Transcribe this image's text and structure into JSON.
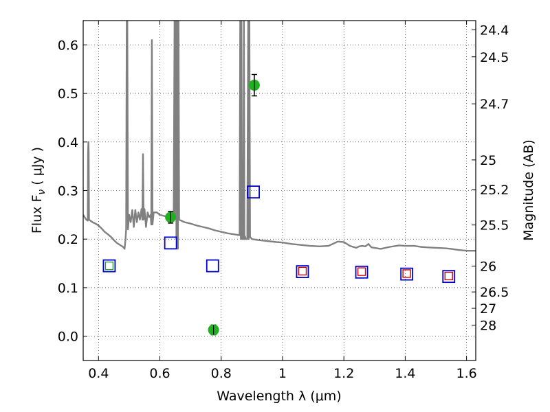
{
  "chart_data": {
    "type": "scatter",
    "xlabel": "Wavelength  λ (μm)",
    "ylabel": "Flux  F",
    "ylabel_sub": "ν",
    "ylabel_unit": " ( μJy )",
    "y2label": "Magnitude (AB)",
    "xlim": [
      0.35,
      1.63
    ],
    "ylim": [
      -0.05,
      0.65
    ],
    "grid": true,
    "x_ticks": [
      0.4,
      0.6,
      0.8,
      1.0,
      1.2,
      1.4,
      1.6
    ],
    "x_tick_labels": [
      "0.4",
      "0.6",
      "0.8",
      "1",
      "1.2",
      "1.4",
      "1.6"
    ],
    "y_ticks": [
      0.0,
      0.1,
      0.2,
      0.3,
      0.4,
      0.5,
      0.6
    ],
    "y_tick_labels": [
      "0.0",
      "0.1",
      "0.2",
      "0.3",
      "0.4",
      "0.5",
      "0.6"
    ],
    "y2_ticks": [
      {
        "label": "24.4",
        "flux": 0.6309
      },
      {
        "label": "24.5",
        "flux": 0.5754
      },
      {
        "label": "24.7",
        "flux": 0.4786
      },
      {
        "label": "25",
        "flux": 0.3631
      },
      {
        "label": "25.2",
        "flux": 0.302
      },
      {
        "label": "25.5",
        "flux": 0.2291
      },
      {
        "label": "26",
        "flux": 0.1445
      },
      {
        "label": "26.5",
        "flux": 0.0912
      },
      {
        "label": "27",
        "flux": 0.0575
      },
      {
        "label": "28",
        "flux": 0.0229
      }
    ],
    "colors": {
      "sed": "#808080",
      "observed": "#1fb11f",
      "model_blue": "#0000cc",
      "model_red": "#cc0000",
      "model_green": "#2a9a2a",
      "errorbar": "#000000"
    },
    "series": [
      {
        "kind": "sed-line",
        "points": [
          [
            0.35,
            0.25
          ],
          [
            0.355,
            0.245
          ],
          [
            0.36,
            0.24
          ],
          [
            0.365,
            0.238
          ],
          [
            0.366,
            0.38
          ],
          [
            0.367,
            0.4
          ],
          [
            0.368,
            0.38
          ],
          [
            0.369,
            0.24
          ],
          [
            0.38,
            0.235
          ],
          [
            0.39,
            0.232
          ],
          [
            0.4,
            0.228
          ],
          [
            0.41,
            0.222
          ],
          [
            0.42,
            0.215
          ],
          [
            0.43,
            0.21
          ],
          [
            0.44,
            0.205
          ],
          [
            0.45,
            0.198
          ],
          [
            0.46,
            0.192
          ],
          [
            0.47,
            0.188
          ],
          [
            0.48,
            0.184
          ],
          [
            0.485,
            0.18
          ],
          [
            0.488,
            0.2
          ],
          [
            0.49,
            0.22
          ],
          [
            0.492,
            0.65
          ],
          [
            0.494,
            0.65
          ],
          [
            0.496,
            0.22
          ],
          [
            0.5,
            0.25
          ],
          [
            0.505,
            0.235
          ],
          [
            0.51,
            0.26
          ],
          [
            0.515,
            0.225
          ],
          [
            0.52,
            0.26
          ],
          [
            0.525,
            0.235
          ],
          [
            0.53,
            0.255
          ],
          [
            0.535,
            0.24
          ],
          [
            0.54,
            0.262
          ],
          [
            0.543,
            0.24
          ],
          [
            0.545,
            0.375
          ],
          [
            0.547,
            0.24
          ],
          [
            0.55,
            0.262
          ],
          [
            0.555,
            0.225
          ],
          [
            0.56,
            0.255
          ],
          [
            0.565,
            0.245
          ],
          [
            0.57,
            0.25
          ],
          [
            0.572,
            0.23
          ],
          [
            0.574,
            0.61
          ],
          [
            0.576,
            0.23
          ],
          [
            0.58,
            0.255
          ],
          [
            0.59,
            0.255
          ],
          [
            0.6,
            0.25
          ],
          [
            0.63,
            0.245
          ],
          [
            0.645,
            0.24
          ],
          [
            0.648,
            0.65
          ],
          [
            0.65,
            0.25
          ],
          [
            0.652,
            0.65
          ],
          [
            0.654,
            0.2
          ],
          [
            0.657,
            0.65
          ],
          [
            0.659,
            0.18
          ],
          [
            0.661,
            0.65
          ],
          [
            0.663,
            0.24
          ],
          [
            0.68,
            0.235
          ],
          [
            0.7,
            0.232
          ],
          [
            0.72,
            0.228
          ],
          [
            0.74,
            0.225
          ],
          [
            0.76,
            0.222
          ],
          [
            0.78,
            0.218
          ],
          [
            0.8,
            0.215
          ],
          [
            0.82,
            0.212
          ],
          [
            0.84,
            0.21
          ],
          [
            0.86,
            0.208
          ],
          [
            0.862,
            0.65
          ],
          [
            0.864,
            0.2
          ],
          [
            0.866,
            0.65
          ],
          [
            0.868,
            0.2
          ],
          [
            0.872,
            0.2
          ],
          [
            0.874,
            0.65
          ],
          [
            0.876,
            0.2
          ],
          [
            0.878,
            0.205
          ],
          [
            0.88,
            0.2
          ],
          [
            0.885,
            0.2
          ],
          [
            0.888,
            0.65
          ],
          [
            0.89,
            0.2
          ],
          [
            0.892,
            0.65
          ],
          [
            0.894,
            0.205
          ],
          [
            0.9,
            0.2
          ],
          [
            0.92,
            0.198
          ],
          [
            0.95,
            0.196
          ],
          [
            0.98,
            0.194
          ],
          [
            1.0,
            0.193
          ],
          [
            1.03,
            0.19
          ],
          [
            1.06,
            0.188
          ],
          [
            1.09,
            0.186
          ],
          [
            1.12,
            0.185
          ],
          [
            1.15,
            0.186
          ],
          [
            1.17,
            0.192
          ],
          [
            1.18,
            0.195
          ],
          [
            1.2,
            0.194
          ],
          [
            1.22,
            0.186
          ],
          [
            1.24,
            0.182
          ],
          [
            1.25,
            0.185
          ],
          [
            1.26,
            0.186
          ],
          [
            1.27,
            0.185
          ],
          [
            1.28,
            0.19
          ],
          [
            1.29,
            0.183
          ],
          [
            1.3,
            0.182
          ],
          [
            1.32,
            0.18
          ],
          [
            1.35,
            0.184
          ],
          [
            1.38,
            0.187
          ],
          [
            1.4,
            0.186
          ],
          [
            1.43,
            0.186
          ],
          [
            1.45,
            0.184
          ],
          [
            1.47,
            0.183
          ],
          [
            1.5,
            0.182
          ],
          [
            1.53,
            0.181
          ],
          [
            1.55,
            0.18
          ],
          [
            1.57,
            0.178
          ],
          [
            1.6,
            0.176
          ],
          [
            1.63,
            0.176
          ]
        ]
      },
      {
        "kind": "observed",
        "points": [
          {
            "x": 0.635,
            "y": 0.245,
            "err": 0.012
          },
          {
            "x": 0.775,
            "y": 0.013,
            "err": 0.01
          },
          {
            "x": 0.908,
            "y": 0.517,
            "err": 0.022
          }
        ]
      },
      {
        "kind": "model-blue",
        "points": [
          {
            "x": 0.435,
            "y": 0.145
          },
          {
            "x": 0.635,
            "y": 0.192
          },
          {
            "x": 0.772,
            "y": 0.145
          },
          {
            "x": 0.905,
            "y": 0.297
          },
          {
            "x": 1.065,
            "y": 0.133
          },
          {
            "x": 1.258,
            "y": 0.132
          },
          {
            "x": 1.405,
            "y": 0.128
          },
          {
            "x": 1.542,
            "y": 0.123
          }
        ]
      },
      {
        "kind": "model-red",
        "points": [
          {
            "x": 1.065,
            "y": 0.134
          },
          {
            "x": 1.258,
            "y": 0.133
          },
          {
            "x": 1.405,
            "y": 0.129
          },
          {
            "x": 1.542,
            "y": 0.124
          }
        ]
      },
      {
        "kind": "model-green",
        "points": [
          {
            "x": 0.435,
            "y": 0.145
          }
        ]
      }
    ]
  }
}
